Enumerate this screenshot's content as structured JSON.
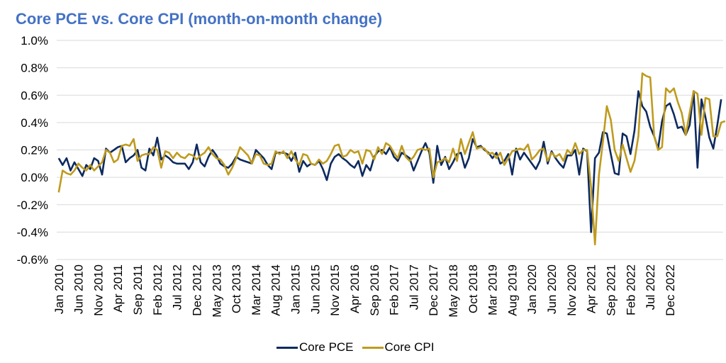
{
  "colors": {
    "title": "#4472c4",
    "core_pce": "#0d2a5e",
    "core_cpi": "#bf9b1e",
    "grid": "#d9d9d9"
  },
  "chart_data": {
    "type": "line",
    "title": "Core PCE vs. Core CPI (month-on-month change)",
    "xlabel": "",
    "ylabel": "",
    "ylim": [
      -0.6,
      1.0
    ],
    "yticks": [
      "1.0%",
      "0.8%",
      "0.6%",
      "0.4%",
      "0.2%",
      "0.0%",
      "-0.2%",
      "-0.4%",
      "-0.6%"
    ],
    "ytick_values": [
      1.0,
      0.8,
      0.6,
      0.4,
      0.2,
      0.0,
      -0.2,
      -0.4,
      -0.6
    ],
    "x_start": "Jan 2010",
    "x_end": "Dec 2022",
    "xticks": [
      "Jan 2010",
      "Jun 2010",
      "Nov 2010",
      "Apr 2011",
      "Sep 2011",
      "Feb 2012",
      "Jul 2012",
      "Dec 2012",
      "May 2013",
      "Oct 2013",
      "Mar 2014",
      "Aug 2014",
      "Jan 2015",
      "Jun 2015",
      "Nov 2015",
      "Apr 2016",
      "Sep 2016",
      "Feb 2017",
      "Jul 2017",
      "Dec 2017",
      "May 2018",
      "Oct 2018",
      "Mar 2019",
      "Aug 2019",
      "Jan 2020",
      "Jun 2020",
      "Nov 2020",
      "Apr 2021",
      "Sep 2021",
      "Feb 2022",
      "Jul 2022",
      "Dec 2022"
    ],
    "grid": "horizontal",
    "legend": "bottom-center",
    "series": [
      {
        "name": "Core PCE",
        "color": "#0d2a5e",
        "values": [
          0.14,
          0.09,
          0.14,
          0.05,
          0.11,
          0.06,
          0.01,
          0.09,
          0.06,
          0.14,
          0.12,
          0.02,
          0.21,
          0.18,
          0.2,
          0.22,
          0.23,
          0.11,
          0.14,
          0.16,
          0.2,
          0.07,
          0.05,
          0.21,
          0.16,
          0.29,
          0.13,
          0.16,
          0.14,
          0.11,
          0.1,
          0.1,
          0.1,
          0.06,
          0.11,
          0.24,
          0.11,
          0.08,
          0.15,
          0.2,
          0.16,
          0.1,
          0.08,
          0.07,
          0.1,
          0.15,
          0.13,
          0.12,
          0.11,
          0.1,
          0.2,
          0.17,
          0.14,
          0.09,
          0.06,
          0.18,
          0.18,
          0.18,
          0.17,
          0.12,
          0.18,
          0.04,
          0.12,
          0.08,
          0.1,
          0.09,
          0.12,
          0.06,
          -0.02,
          0.1,
          0.15,
          0.17,
          0.14,
          0.12,
          0.09,
          0.07,
          0.12,
          0.01,
          0.09,
          0.05,
          0.15,
          0.19,
          0.2,
          0.17,
          0.22,
          0.15,
          0.12,
          0.18,
          0.16,
          0.14,
          0.05,
          0.12,
          0.19,
          0.25,
          0.18,
          -0.04,
          0.23,
          0.09,
          0.15,
          0.06,
          0.11,
          0.17,
          0.18,
          0.07,
          0.14,
          0.28,
          0.22,
          0.23,
          0.2,
          0.18,
          0.14,
          0.18,
          0.1,
          0.12,
          0.17,
          0.02,
          0.21,
          0.13,
          0.18,
          0.14,
          0.1,
          0.06,
          0.12,
          0.26,
          0.1,
          0.19,
          0.14,
          0.1,
          0.07,
          0.16,
          0.16,
          0.2,
          0.02,
          0.21,
          0.19,
          -0.4,
          0.14,
          0.18,
          0.33,
          0.32,
          0.17,
          0.03,
          0.02,
          0.32,
          0.3,
          0.17,
          0.34,
          0.63,
          0.52,
          0.48,
          0.37,
          0.3,
          0.21,
          0.41,
          0.52,
          0.54,
          0.46,
          0.36,
          0.37,
          0.31,
          0.38,
          0.63,
          0.07,
          0.57,
          0.44,
          0.29,
          0.21,
          0.38,
          0.57
        ]
      },
      {
        "name": "Core CPI",
        "color": "#bf9b1e",
        "values": [
          -0.11,
          0.05,
          0.03,
          0.02,
          0.05,
          0.1,
          0.07,
          0.05,
          0.09,
          0.05,
          0.08,
          0.11,
          0.2,
          0.18,
          0.11,
          0.13,
          0.23,
          0.24,
          0.23,
          0.28,
          0.12,
          0.16,
          0.17,
          0.17,
          0.22,
          0.2,
          0.07,
          0.19,
          0.18,
          0.14,
          0.18,
          0.15,
          0.14,
          0.17,
          0.16,
          0.13,
          0.16,
          0.18,
          0.22,
          0.17,
          0.14,
          0.13,
          0.09,
          0.02,
          0.07,
          0.14,
          0.22,
          0.19,
          0.16,
          0.1,
          0.17,
          0.16,
          0.1,
          0.09,
          0.1,
          0.19,
          0.17,
          0.19,
          0.14,
          0.19,
          0.13,
          0.09,
          0.17,
          0.16,
          0.1,
          0.09,
          0.13,
          0.1,
          0.12,
          0.17,
          0.23,
          0.24,
          0.15,
          0.16,
          0.2,
          0.18,
          0.19,
          0.1,
          0.2,
          0.19,
          0.13,
          0.22,
          0.17,
          0.25,
          0.23,
          0.18,
          0.14,
          0.23,
          0.15,
          0.12,
          0.15,
          0.2,
          0.21,
          0.2,
          0.21,
          0.0,
          0.11,
          0.12,
          0.14,
          0.11,
          0.21,
          0.12,
          0.28,
          0.17,
          0.25,
          0.33,
          0.21,
          0.22,
          0.21,
          0.17,
          0.18,
          0.14,
          0.18,
          0.09,
          0.14,
          0.19,
          0.2,
          0.21,
          0.2,
          0.24,
          0.13,
          0.16,
          0.2,
          0.21,
          0.12,
          0.18,
          0.15,
          0.17,
          0.12,
          0.2,
          0.17,
          0.25,
          0.17,
          0.2,
          0.2,
          -0.07,
          -0.49,
          0.02,
          0.26,
          0.52,
          0.42,
          0.2,
          0.12,
          0.24,
          0.14,
          0.04,
          0.12,
          0.3,
          0.76,
          0.74,
          0.73,
          0.3,
          0.2,
          0.22,
          0.65,
          0.62,
          0.65,
          0.55,
          0.47,
          0.31,
          0.47,
          0.63,
          0.61,
          0.31,
          0.58,
          0.57,
          0.3,
          0.3,
          0.4,
          0.41
        ]
      }
    ]
  }
}
